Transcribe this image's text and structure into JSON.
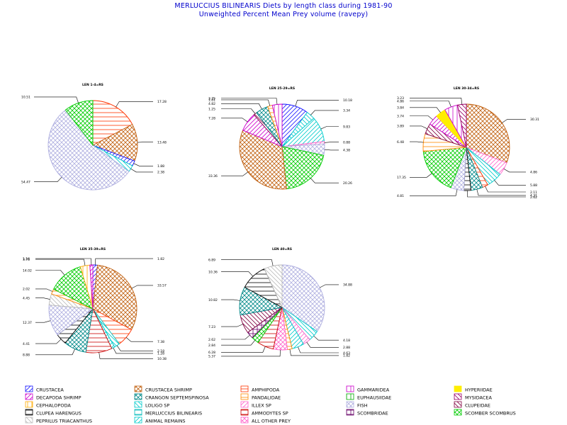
{
  "title": {
    "line1": "MERLUCCIUS BILINEARIS Diets by length class during 1981-90",
    "line2": "Unweighted Percent Mean Prey volume (ravepy)"
  },
  "categories": [
    {
      "key": "crustacea",
      "label": "CRUSTACEA",
      "color": "#1a1aff",
      "pattern": "fdiag"
    },
    {
      "key": "crustacea_shrimp",
      "label": "CRUSTACEA SHRIMP",
      "color": "#c06010",
      "pattern": "cross"
    },
    {
      "key": "amphipoda",
      "label": "AMPHIPODA",
      "color": "#ff3300",
      "pattern": "horiz"
    },
    {
      "key": "gammaridea",
      "label": "GAMMARIDEA",
      "color": "#cc00cc",
      "pattern": "vert"
    },
    {
      "key": "hyperiidae",
      "label": "HYPERIIDAE",
      "color": "#ffee00",
      "pattern": "solid"
    },
    {
      "key": "decapoda_shrimp",
      "label": "DECAPODA SHRIMP",
      "color": "#cc00cc",
      "pattern": "fdiag"
    },
    {
      "key": "crangon",
      "label": "CRANGON SEPTEMSPINOSA",
      "color": "#008888",
      "pattern": "cross"
    },
    {
      "key": "pandalidae",
      "label": "PANDALIDAE",
      "color": "#ff8800",
      "pattern": "horiz"
    },
    {
      "key": "euphausiidae",
      "label": "EUPHAUSIIDAE",
      "color": "#00aa00",
      "pattern": "vert"
    },
    {
      "key": "mysidacea",
      "label": "MYSIDACEA",
      "color": "#990066",
      "pattern": "bdiag"
    },
    {
      "key": "cephalopoda",
      "label": "CEPHALOPODA",
      "color": "#ffaa00",
      "pattern": "vert"
    },
    {
      "key": "loligo",
      "label": "LOLIGO SP",
      "color": "#00cccc",
      "pattern": "bdiag"
    },
    {
      "key": "illex",
      "label": "ILLEX SP",
      "color": "#ff66cc",
      "pattern": "fdiag"
    },
    {
      "key": "fish",
      "label": "FISH",
      "color": "#b0b0e0",
      "pattern": "cross"
    },
    {
      "key": "clupeidae",
      "label": "CLUPEIDAE",
      "color": "#800040",
      "pattern": "bdiag"
    },
    {
      "key": "clupea",
      "label": "CLUPEA HARENGUS",
      "color": "#000000",
      "pattern": "horiz"
    },
    {
      "key": "merluccius",
      "label": "MERLUCCIUS BILINEARIS",
      "color": "#00bbbb",
      "pattern": "horiz"
    },
    {
      "key": "ammodytes",
      "label": "AMMODYTES SP",
      "color": "#cc0000",
      "pattern": "horiz"
    },
    {
      "key": "scombridae",
      "label": "SCOMBRIDAE",
      "color": "#660066",
      "pattern": "grid"
    },
    {
      "key": "scomber",
      "label": "SCOMBER SCOMBRUS",
      "color": "#00cc00",
      "pattern": "cross"
    },
    {
      "key": "peprilus",
      "label": "PEPRILUS TRIACANTHUS",
      "color": "#bbbbbb",
      "pattern": "bdiag"
    },
    {
      "key": "animal_remains",
      "label": "ANIMAL REMAINS",
      "color": "#00cccc",
      "pattern": "fdiag"
    },
    {
      "key": "all_other",
      "label": "ALL OTHER PREY",
      "color": "#ff66cc",
      "pattern": "cross"
    }
  ],
  "chart_data": [
    {
      "type": "pie",
      "title": "LEN 1-4=RS",
      "slices": [
        {
          "category": "amphipoda",
          "value": 17.28
        },
        {
          "category": "crustacea_shrimp",
          "value": 13.48
        },
        {
          "category": "crustacea",
          "value": 1.88
        },
        {
          "category": "loligo",
          "value": 2.38
        },
        {
          "category": "fish",
          "value": 54.47
        },
        {
          "category": "scomber",
          "value": 10.51
        }
      ],
      "labels": [
        "17.28",
        "13.48",
        "1.88",
        "2.38",
        "54.47",
        "10.51"
      ]
    },
    {
      "type": "pie",
      "title": "LEN 25-29=RS",
      "slices": [
        {
          "category": "crustacea",
          "value": 10.18
        },
        {
          "category": "loligo",
          "value": 3.34
        },
        {
          "category": "animal_remains",
          "value": 9.83
        },
        {
          "category": "illex",
          "value": 0.88
        },
        {
          "category": "fish",
          "value": 4.38
        },
        {
          "category": "scomber",
          "value": 20.26
        },
        {
          "category": "crustacea_shrimp",
          "value": 33.36
        },
        {
          "category": "decapoda_shrimp",
          "value": 7.28
        },
        {
          "category": "clupeidae",
          "value": 1.25
        },
        {
          "category": "crangon",
          "value": 4.82
        },
        {
          "category": "pandalidae",
          "value": 1.81
        },
        {
          "category": "gammaridea",
          "value": 3.75
        }
      ],
      "labels": [
        "10.18",
        "3.34",
        "9.83",
        "0.88",
        "4.38",
        "20.26",
        "33.36",
        "7.28",
        "1.25",
        "4.82",
        "1.81",
        "3.75"
      ]
    },
    {
      "type": "pie",
      "title": "LEN 30-34=RS",
      "slices": [
        {
          "category": "crustacea_shrimp",
          "value": 30.31
        },
        {
          "category": "illex",
          "value": 4.86
        },
        {
          "category": "loligo",
          "value": 5.88
        },
        {
          "category": "amphipoda",
          "value": 2.11
        },
        {
          "category": "crangon",
          "value": 4.31
        },
        {
          "category": "clupea",
          "value": 2.62
        },
        {
          "category": "fish",
          "value": 4.81
        },
        {
          "category": "scomber",
          "value": 17.35
        },
        {
          "category": "pandalidae",
          "value": 6.48
        },
        {
          "category": "clupeidae",
          "value": 3.89
        },
        {
          "category": "decapoda_shrimp",
          "value": 3.74
        },
        {
          "category": "hyperiidae",
          "value": 3.84
        },
        {
          "category": "gammaridea",
          "value": 4.86
        },
        {
          "category": "mysidacea",
          "value": 3.23
        }
      ],
      "labels": [
        "30.31",
        "4.86",
        "5.88",
        "2.11",
        "4.31",
        "2.62",
        "4.81",
        "17.35",
        "6.48",
        "3.89",
        "3.74",
        "3.84",
        "4.86",
        "3.23"
      ]
    },
    {
      "type": "pie",
      "title": "LEN 35-39=RS",
      "slices": [
        {
          "category": "crustacea",
          "value": 1.82
        },
        {
          "category": "crustacea_shrimp",
          "value": 33.57
        },
        {
          "category": "amphipoda",
          "value": 7.38
        },
        {
          "category": "loligo",
          "value": 2.18
        },
        {
          "category": "animal_remains",
          "value": 1.28
        },
        {
          "category": "ammodytes",
          "value": 10.38
        },
        {
          "category": "crangon",
          "value": 8.88
        },
        {
          "category": "clupea",
          "value": 4.41
        },
        {
          "category": "fish",
          "value": 12.37
        },
        {
          "category": "peprilus",
          "value": 4.45
        },
        {
          "category": "pandalidae",
          "value": 2.02
        },
        {
          "category": "scomber",
          "value": 14.02
        },
        {
          "category": "cephalopoda",
          "value": 3.75
        },
        {
          "category": "decapoda_shrimp",
          "value": 1.18
        }
      ],
      "labels": [
        "1.82",
        "33.57",
        "7.38",
        "2.18",
        "1.28",
        "10.38",
        "8.88",
        "4.41",
        "12.37",
        "4.45",
        "2.02",
        "14.02",
        "3.75",
        "1.18"
      ]
    },
    {
      "type": "pie",
      "title": "LEN 40=RS",
      "slices": [
        {
          "category": "fish",
          "value": 34.88
        },
        {
          "category": "loligo",
          "value": 4.18
        },
        {
          "category": "illex",
          "value": 2.88
        },
        {
          "category": "animal_remains",
          "value": 4.63
        },
        {
          "category": "pandalidae",
          "value": 1.82
        },
        {
          "category": "all_other",
          "value": 5.37
        },
        {
          "category": "ammodytes",
          "value": 6.28
        },
        {
          "category": "scomber",
          "value": 2.84
        },
        {
          "category": "scombridae",
          "value": 2.62
        },
        {
          "category": "clupeidae",
          "value": 7.23
        },
        {
          "category": "crangon",
          "value": 10.82
        },
        {
          "category": "clupea",
          "value": 10.36
        },
        {
          "category": "peprilus",
          "value": 6.89
        }
      ],
      "labels": [
        "34.88",
        "4.18",
        "2.88",
        "4.63",
        "1.82",
        "5.37",
        "6.28",
        "2.84",
        "2.62",
        "7.23",
        "10.82",
        "10.36",
        "6.89"
      ]
    }
  ]
}
